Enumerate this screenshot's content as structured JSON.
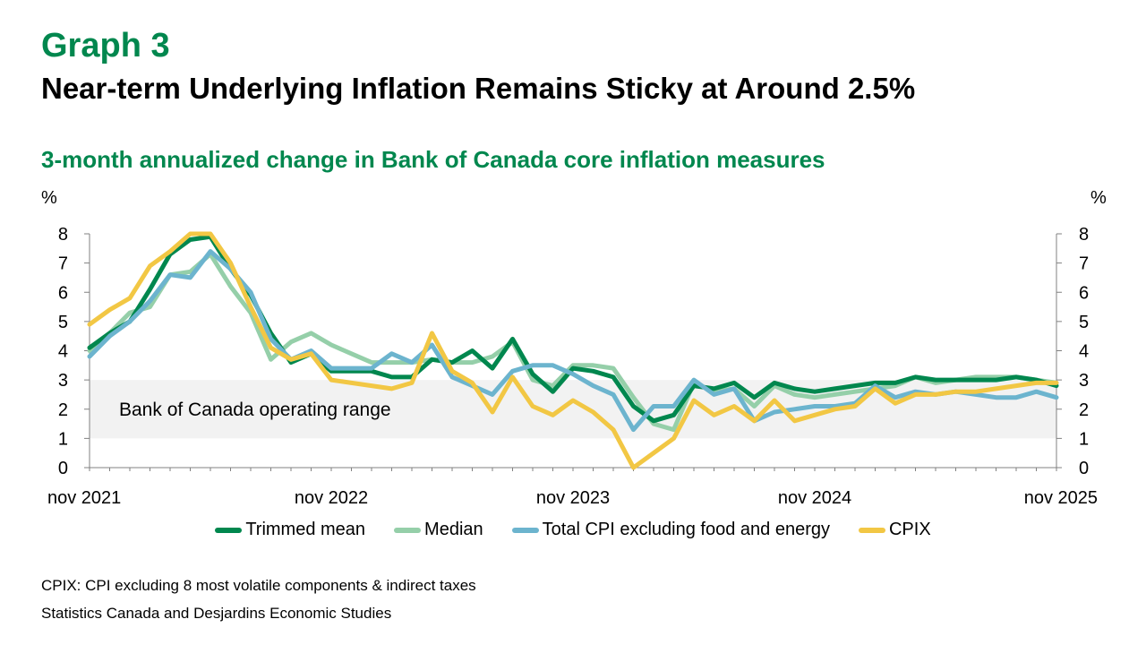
{
  "header": {
    "graph_label": "Graph 3",
    "title": "Near-term Underlying Inflation Remains Sticky at Around 2.5%"
  },
  "footer": {
    "note": "CPIX: CPI excluding 8 most volatile components & indirect taxes",
    "source": "Statistics Canada and Desjardins Economic Studies"
  },
  "colors": {
    "trimmed_mean": "#00874e",
    "median": "#95cfa9",
    "cpi_ex_food_energy": "#6cb4ce",
    "cpix": "#f2c744",
    "band": "#f2f2f2",
    "axis": "#808080"
  },
  "chart_data": {
    "type": "line",
    "title": "3-month annualized change in Bank of Canada core inflation measures",
    "ylabel_left": "%",
    "ylabel_right": "%",
    "ylim": [
      0,
      8
    ],
    "yticks": [
      0,
      1,
      2,
      3,
      4,
      5,
      6,
      7,
      8
    ],
    "x_tick_labels": [
      "nov 2021",
      "nov 2022",
      "nov 2023",
      "nov 2024",
      "nov 2025"
    ],
    "x": [
      "2021-11",
      "2021-12",
      "2022-01",
      "2022-02",
      "2022-03",
      "2022-04",
      "2022-05",
      "2022-06",
      "2022-07",
      "2022-08",
      "2022-09",
      "2022-10",
      "2022-11",
      "2022-12",
      "2023-01",
      "2023-02",
      "2023-03",
      "2023-04",
      "2023-05",
      "2023-06",
      "2023-07",
      "2023-08",
      "2023-09",
      "2023-10",
      "2023-11",
      "2023-12",
      "2024-01",
      "2024-02",
      "2024-03",
      "2024-04",
      "2024-05",
      "2024-06",
      "2024-07",
      "2024-08",
      "2024-09",
      "2024-10",
      "2024-11",
      "2024-12",
      "2025-01",
      "2025-02",
      "2025-03",
      "2025-04",
      "2025-05",
      "2025-06",
      "2025-07",
      "2025-08",
      "2025-09",
      "2025-10",
      "2025-11"
    ],
    "band": {
      "label": "Bank of Canada operating range",
      "from": 1,
      "to": 3
    },
    "legend_position": "bottom",
    "series": [
      {
        "name": "Trimmed mean",
        "values": [
          4.1,
          4.6,
          5.0,
          6.1,
          7.3,
          7.8,
          7.9,
          6.8,
          5.9,
          4.6,
          3.6,
          3.9,
          3.3,
          3.3,
          3.3,
          3.1,
          3.1,
          3.7,
          3.6,
          4.0,
          3.4,
          4.4,
          3.2,
          2.6,
          3.4,
          3.3,
          3.1,
          2.1,
          1.6,
          1.8,
          2.8,
          2.7,
          2.9,
          2.4,
          2.9,
          2.7,
          2.6,
          2.7,
          2.8,
          2.9,
          2.9,
          3.1,
          3.0,
          3.0,
          3.0,
          3.0,
          3.1,
          3.0,
          2.8
        ]
      },
      {
        "name": "Median",
        "values": [
          4.0,
          4.6,
          5.3,
          5.5,
          6.6,
          6.7,
          7.3,
          6.2,
          5.3,
          3.7,
          4.3,
          4.6,
          4.2,
          3.9,
          3.6,
          3.6,
          3.6,
          3.7,
          3.6,
          3.6,
          3.8,
          4.3,
          3.0,
          2.8,
          3.5,
          3.5,
          3.4,
          2.4,
          1.5,
          1.3,
          2.9,
          2.6,
          2.7,
          2.1,
          2.8,
          2.5,
          2.4,
          2.5,
          2.6,
          2.7,
          2.8,
          3.1,
          2.9,
          3.0,
          3.1,
          3.1,
          3.1,
          3.0,
          2.9
        ]
      },
      {
        "name": "Total CPI excluding food and energy",
        "values": [
          3.8,
          4.5,
          5.0,
          5.7,
          6.6,
          6.5,
          7.4,
          6.8,
          6.0,
          4.4,
          3.7,
          4.0,
          3.4,
          3.4,
          3.4,
          3.9,
          3.6,
          4.2,
          3.1,
          2.8,
          2.5,
          3.3,
          3.5,
          3.5,
          3.2,
          2.8,
          2.5,
          1.3,
          2.1,
          2.1,
          3.0,
          2.5,
          2.7,
          1.6,
          1.9,
          2.0,
          2.1,
          2.1,
          2.2,
          2.8,
          2.4,
          2.6,
          2.5,
          2.6,
          2.5,
          2.4,
          2.4,
          2.6,
          2.4
        ]
      },
      {
        "name": "CPIX",
        "values": [
          4.9,
          5.4,
          5.8,
          6.9,
          7.4,
          8.0,
          8.0,
          7.0,
          5.5,
          4.1,
          3.7,
          3.9,
          3.0,
          2.9,
          2.8,
          2.7,
          2.9,
          4.6,
          3.3,
          2.9,
          1.9,
          3.1,
          2.1,
          1.8,
          2.3,
          1.9,
          1.3,
          0.0,
          0.5,
          1.0,
          2.3,
          1.8,
          2.1,
          1.6,
          2.3,
          1.6,
          1.8,
          2.0,
          2.1,
          2.7,
          2.2,
          2.5,
          2.5,
          2.6,
          2.6,
          2.7,
          2.8,
          2.9,
          2.9
        ]
      }
    ]
  }
}
